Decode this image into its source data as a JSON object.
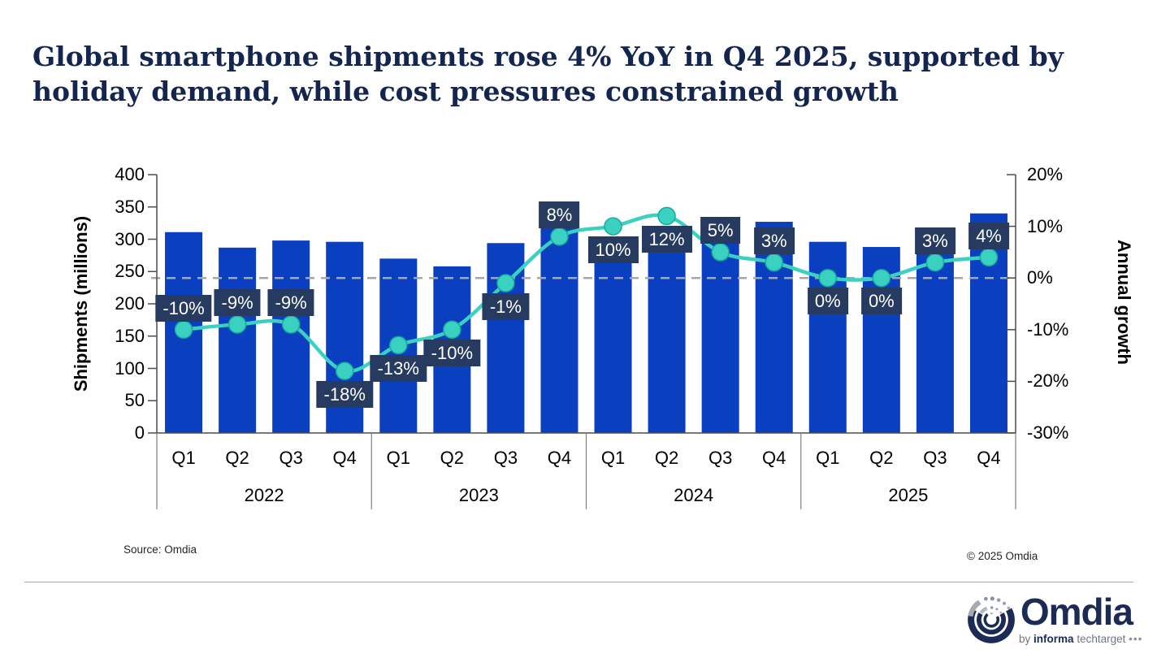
{
  "header": {
    "title": "Global smartphone shipments rose 4% YoY in Q4 2025, supported by holiday demand, while cost pressures constrained growth"
  },
  "chart_data": {
    "type": "combo bar + line",
    "categories_quarters": [
      "Q1",
      "Q2",
      "Q3",
      "Q4",
      "Q1",
      "Q2",
      "Q3",
      "Q4",
      "Q1",
      "Q2",
      "Q3",
      "Q4",
      "Q1",
      "Q2",
      "Q3",
      "Q4"
    ],
    "category_years": [
      "2022",
      "2023",
      "2024",
      "2025"
    ],
    "bar_series": {
      "name": "Shipments (millions)",
      "values": [
        311,
        287,
        298,
        296,
        270,
        258,
        294,
        318,
        296,
        289,
        307,
        327,
        296,
        288,
        316,
        340
      ]
    },
    "line_series": {
      "name": "Annual growth",
      "values_pct": [
        -10,
        -9,
        -9,
        -18,
        -13,
        -10,
        -1,
        8,
        10,
        12,
        5,
        3,
        0,
        0,
        3,
        4
      ],
      "labels": [
        "-10%",
        "-9%",
        "-9%",
        "-18%",
        "-13%",
        "-10%",
        "-1%",
        "8%",
        "10%",
        "12%",
        "5%",
        "3%",
        "0%",
        "0%",
        "3%",
        "4%"
      ],
      "label_side": [
        "above",
        "above",
        "above",
        "below",
        "below",
        "below",
        "below",
        "above",
        "below",
        "below",
        "above",
        "above",
        "below",
        "below",
        "above",
        "above"
      ]
    },
    "left_axis": {
      "title": "Shipments (millions)",
      "min": 0,
      "max": 400,
      "tick_step": 50,
      "tick_labels": [
        "400",
        "350",
        "300",
        "250",
        "200",
        "150",
        "100",
        "50",
        "0"
      ]
    },
    "right_axis": {
      "title": "Annual growth",
      "min": -30,
      "max": 20,
      "tick_values": [
        20,
        10,
        0,
        -10,
        -20,
        -30
      ],
      "tick_labels": [
        "20%",
        "10%",
        "0%",
        "-10%",
        "-20%",
        "-30%"
      ]
    },
    "zero_reference_line": true,
    "legend_position": "none",
    "grid": "off",
    "colors": {
      "bar": "#0a3fc0",
      "line": "#3ad1c1",
      "point_fill": "#3ad1c1",
      "point_stroke": "#17ab9e",
      "label_box": "#263b5f",
      "label_text": "#ffffff",
      "axis": "#4d4d4d",
      "dashed": "#a6a6a6"
    }
  },
  "footer": {
    "source": "Source: Omdia",
    "copyright": "© 2025 Omdia"
  },
  "logo": {
    "wordmark": "Omdia",
    "tagline_by": "by",
    "tagline_informa": "informa",
    "tagline_techtarget": "techtarget",
    "tagline_dots": "•••"
  }
}
